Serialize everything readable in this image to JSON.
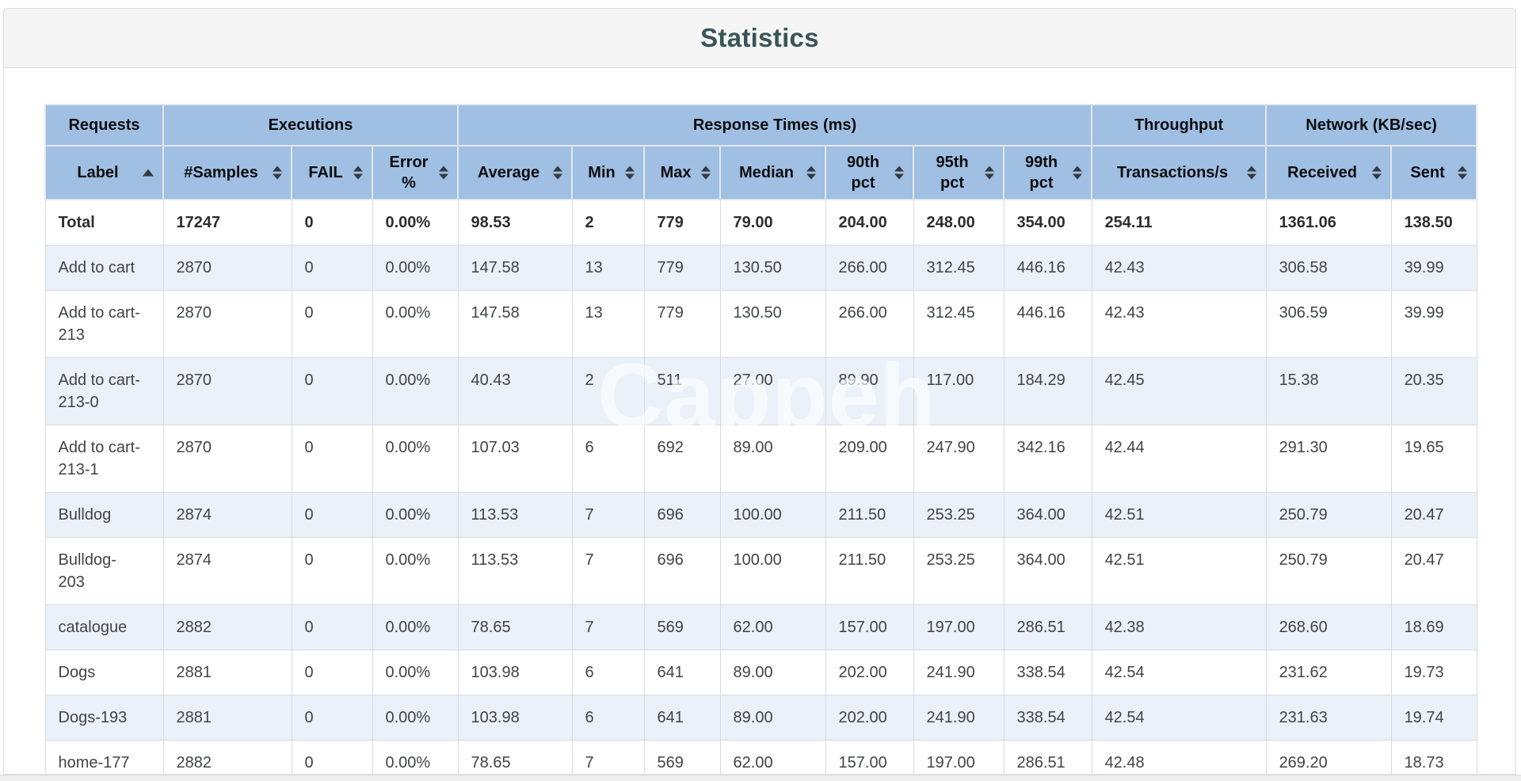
{
  "page": {
    "title": "Statistics",
    "watermark": "Cappeh"
  },
  "colors": {
    "header_blue": "#9fbfe3",
    "stripe_blue": "#eaf1f9",
    "title_teal": "#375555",
    "panel_header_gray": "#f5f5f6"
  },
  "table": {
    "groups": [
      {
        "label": "Requests",
        "span": 1
      },
      {
        "label": "Executions",
        "span": 3
      },
      {
        "label": "Response Times (ms)",
        "span": 7
      },
      {
        "label": "Throughput",
        "span": 1
      },
      {
        "label": "Network (KB/sec)",
        "span": 2
      }
    ],
    "columns": [
      {
        "label": "Label",
        "sort": "asc"
      },
      {
        "label": "#Samples",
        "sort": "both"
      },
      {
        "label": "FAIL",
        "sort": "both"
      },
      {
        "label": "Error %",
        "sort": "both"
      },
      {
        "label": "Average",
        "sort": "both"
      },
      {
        "label": "Min",
        "sort": "both"
      },
      {
        "label": "Max",
        "sort": "both"
      },
      {
        "label": "Median",
        "sort": "both"
      },
      {
        "label": "90th pct",
        "sort": "both"
      },
      {
        "label": "95th pct",
        "sort": "both"
      },
      {
        "label": "99th pct",
        "sort": "both"
      },
      {
        "label": "Transactions/s",
        "sort": "both"
      },
      {
        "label": "Received",
        "sort": "both"
      },
      {
        "label": "Sent",
        "sort": "both"
      }
    ],
    "total_row": [
      "Total",
      "17247",
      "0",
      "0.00%",
      "98.53",
      "2",
      "779",
      "79.00",
      "204.00",
      "248.00",
      "354.00",
      "254.11",
      "1361.06",
      "138.50"
    ],
    "rows": [
      [
        "Add to cart",
        "2870",
        "0",
        "0.00%",
        "147.58",
        "13",
        "779",
        "130.50",
        "266.00",
        "312.45",
        "446.16",
        "42.43",
        "306.58",
        "39.99"
      ],
      [
        "Add to cart-213",
        "2870",
        "0",
        "0.00%",
        "147.58",
        "13",
        "779",
        "130.50",
        "266.00",
        "312.45",
        "446.16",
        "42.43",
        "306.59",
        "39.99"
      ],
      [
        "Add to cart-213-0",
        "2870",
        "0",
        "0.00%",
        "40.43",
        "2",
        "511",
        "27.00",
        "89.90",
        "117.00",
        "184.29",
        "42.45",
        "15.38",
        "20.35"
      ],
      [
        "Add to cart-213-1",
        "2870",
        "0",
        "0.00%",
        "107.03",
        "6",
        "692",
        "89.00",
        "209.00",
        "247.90",
        "342.16",
        "42.44",
        "291.30",
        "19.65"
      ],
      [
        "Bulldog",
        "2874",
        "0",
        "0.00%",
        "113.53",
        "7",
        "696",
        "100.00",
        "211.50",
        "253.25",
        "364.00",
        "42.51",
        "250.79",
        "20.47"
      ],
      [
        "Bulldog-203",
        "2874",
        "0",
        "0.00%",
        "113.53",
        "7",
        "696",
        "100.00",
        "211.50",
        "253.25",
        "364.00",
        "42.51",
        "250.79",
        "20.47"
      ],
      [
        "catalogue",
        "2882",
        "0",
        "0.00%",
        "78.65",
        "7",
        "569",
        "62.00",
        "157.00",
        "197.00",
        "286.51",
        "42.38",
        "268.60",
        "18.69"
      ],
      [
        "Dogs",
        "2881",
        "0",
        "0.00%",
        "103.98",
        "6",
        "641",
        "89.00",
        "202.00",
        "241.90",
        "338.54",
        "42.54",
        "231.62",
        "19.73"
      ],
      [
        "Dogs-193",
        "2881",
        "0",
        "0.00%",
        "103.98",
        "6",
        "641",
        "89.00",
        "202.00",
        "241.90",
        "338.54",
        "42.54",
        "231.63",
        "19.74"
      ],
      [
        "home-177",
        "2882",
        "0",
        "0.00%",
        "78.65",
        "7",
        "569",
        "62.00",
        "157.00",
        "197.00",
        "286.51",
        "42.48",
        "269.20",
        "18.73"
      ]
    ]
  }
}
